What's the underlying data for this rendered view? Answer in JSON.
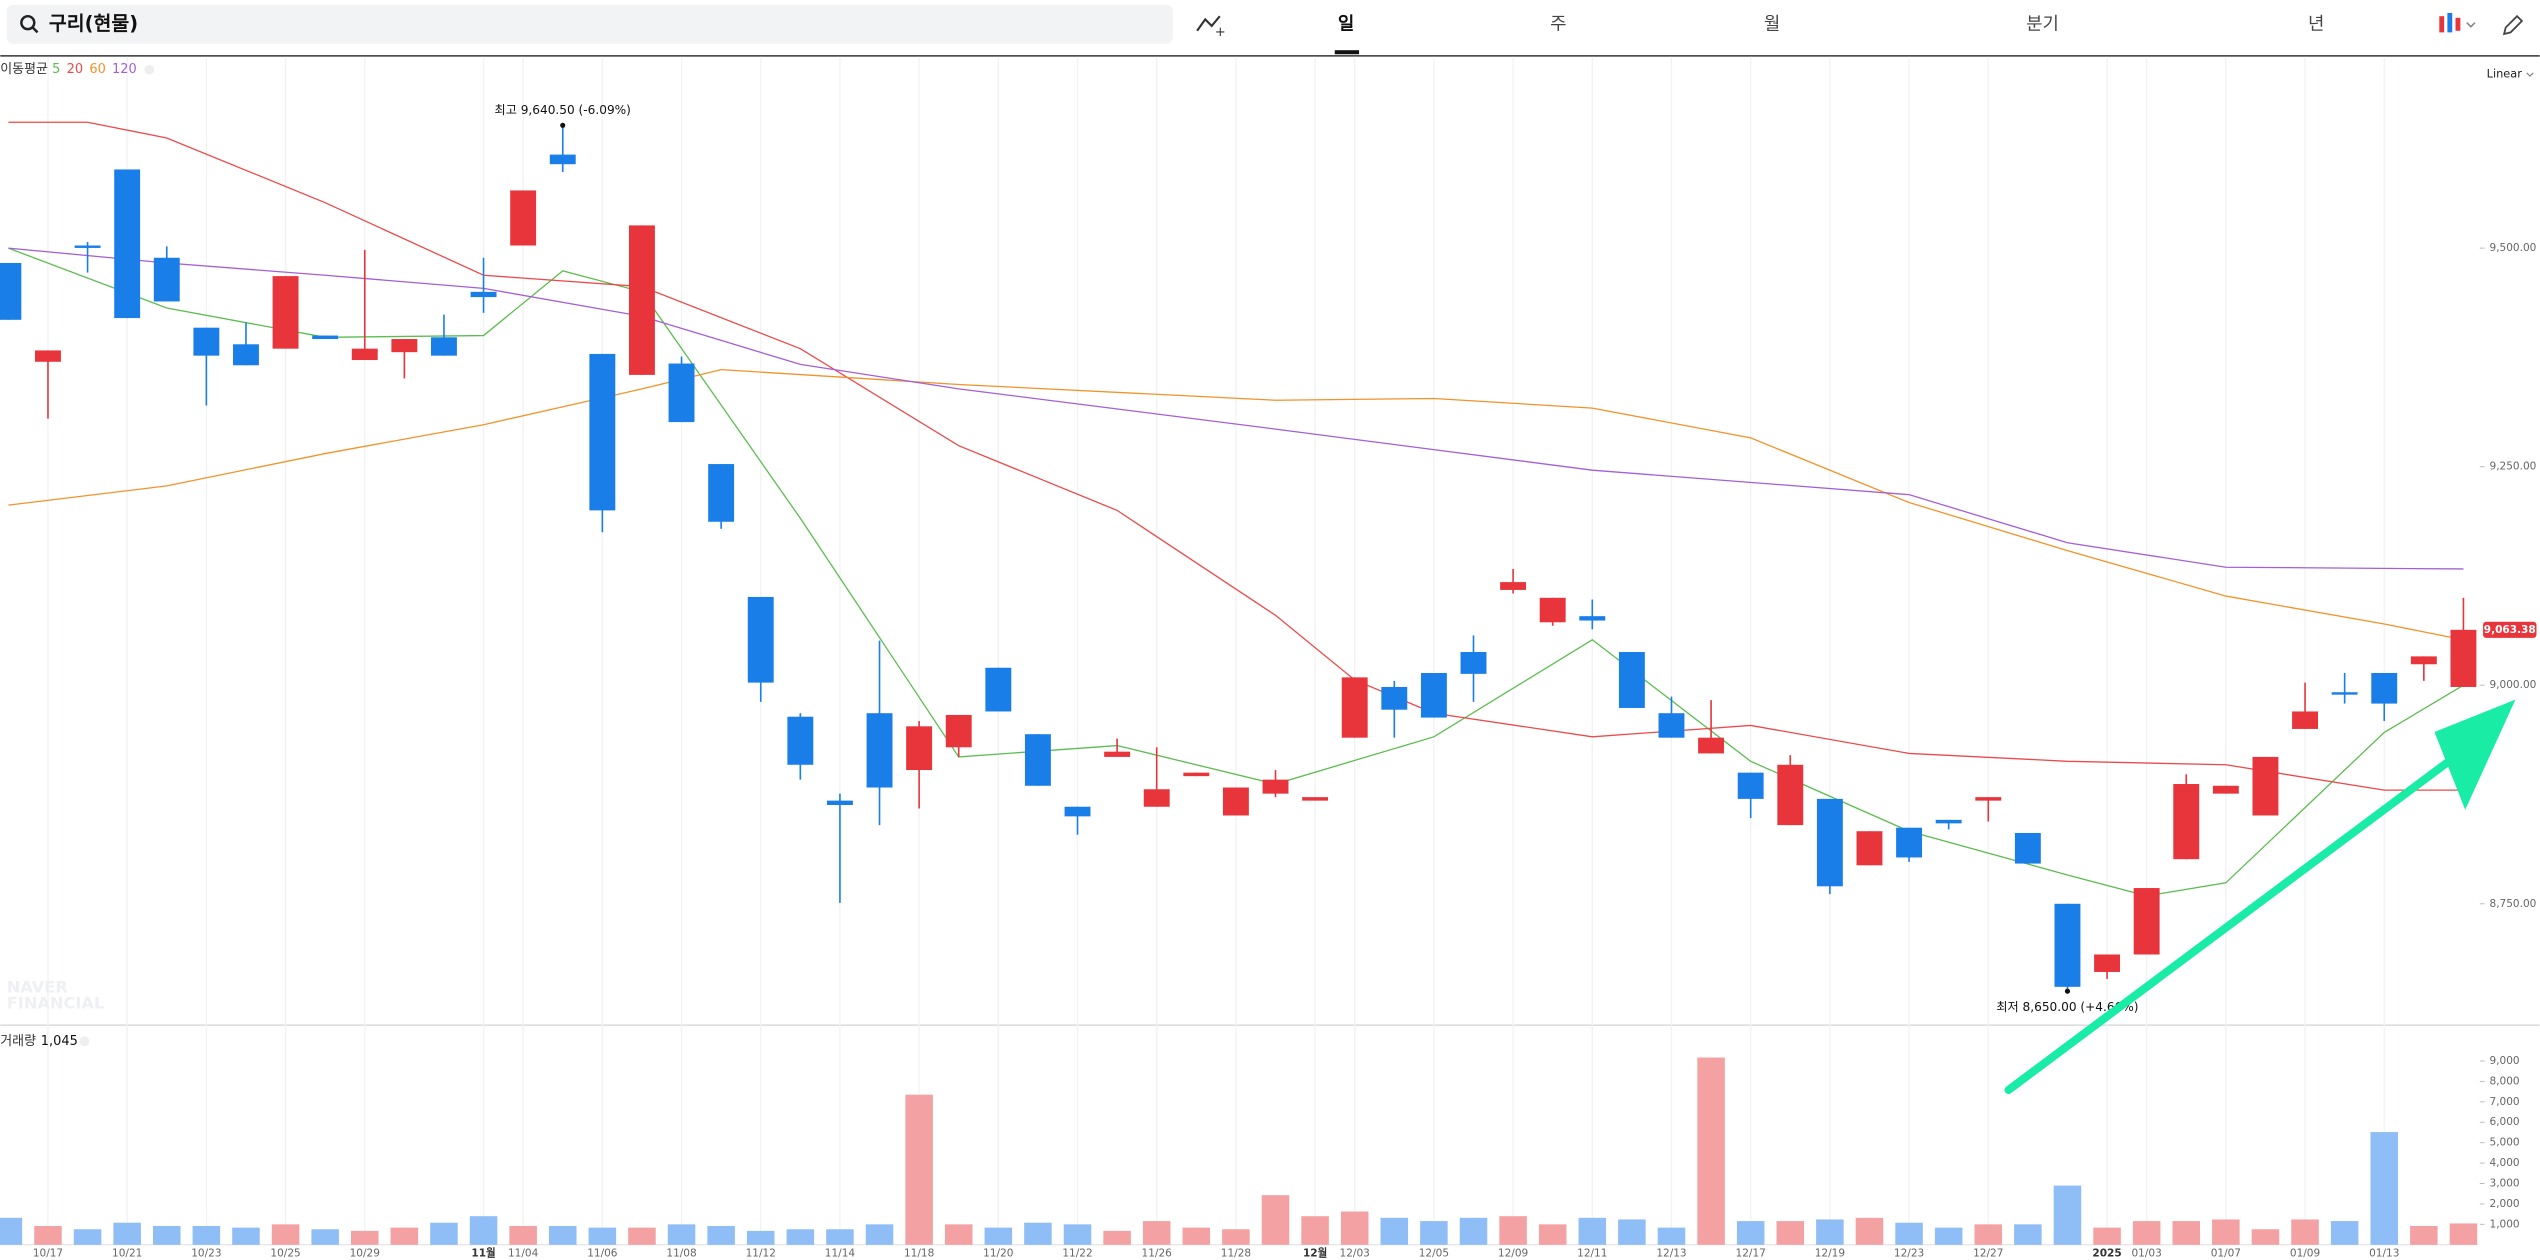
{
  "toolbar": {
    "search": "구리(현물)",
    "tabs": [
      "일",
      "주",
      "월",
      "분기",
      "년"
    ]
  },
  "chart_data": {
    "type": "candlestick",
    "categories": [
      null,
      "10/17",
      null,
      "10/21",
      null,
      "10/23",
      null,
      "10/25",
      null,
      "10/29",
      null,
      null,
      "11월",
      "11/04",
      null,
      "11/06",
      null,
      "11/08",
      null,
      "11/12",
      null,
      "11/14",
      null,
      "11/18",
      null,
      "11/20",
      null,
      "11/22",
      null,
      "11/26",
      null,
      "11/28",
      null,
      "12월",
      "12/03",
      null,
      "12/05",
      null,
      "12/09",
      null,
      "12/11",
      null,
      "12/13",
      null,
      "12/17",
      null,
      "12/19",
      null,
      "12/23",
      null,
      "12/27",
      null,
      null,
      "2025",
      "01/03",
      null,
      "01/07",
      null,
      "01/09",
      null,
      "01/13",
      null,
      null
    ],
    "open": [
      9483,
      9370,
      9503,
      9590,
      9489,
      9409,
      9390,
      9385,
      9400,
      9372,
      9381,
      9398,
      9450,
      9503,
      9607,
      9379,
      9355,
      9368,
      9253,
      9101,
      8964,
      8868,
      8968,
      8903,
      8929,
      9020,
      8944,
      8861,
      8918,
      8861,
      8896,
      8851,
      8876,
      8868,
      8940,
      8998,
      9014,
      9038,
      9109,
      9072,
      9079,
      9038,
      8968,
      8922,
      8900,
      8840,
      8870,
      8794,
      8837,
      8846,
      8868,
      8831,
      8750,
      8672,
      8692,
      8801,
      8876,
      8851,
      8950,
      8992,
      9014,
      9024,
      8998
    ],
    "high": [
      9483,
      9383,
      9507,
      9590,
      9502,
      9409,
      9415,
      9468,
      9400,
      9498,
      9396,
      9424,
      9489,
      9566,
      9640.5,
      9379,
      9526,
      9376,
      9253,
      9101,
      8968,
      8876,
      9051,
      8959,
      8966,
      9020,
      8944,
      8861,
      8939,
      8929,
      8900,
      8883,
      8903,
      8872,
      9009,
      9005,
      9014,
      9057,
      9133,
      9100,
      9098,
      9038,
      8987,
      8983,
      8900,
      8920,
      8870,
      8833,
      8837,
      8846,
      8872,
      8831,
      8750,
      8692,
      8768,
      8898,
      8885,
      8918,
      9003,
      9014,
      9014,
      9033,
      9100
    ],
    "low": [
      9418,
      9305,
      9472,
      9420,
      9439,
      9320,
      9366,
      9385,
      9396,
      9372,
      9351,
      9377,
      9426,
      9503,
      9587,
      9175,
      9355,
      9301,
      9179,
      8981,
      8892,
      8751,
      8840,
      8859,
      8918,
      8970,
      8885,
      8829,
      8918,
      8861,
      8896,
      8851,
      8872,
      8868,
      8940,
      8940,
      8963,
      8981,
      9105,
      9068,
      9064,
      8974,
      8940,
      8922,
      8848,
      8840,
      8761,
      8794,
      8798,
      8835,
      8844,
      8796,
      8650,
      8664,
      8692,
      8801,
      8876,
      8851,
      8950,
      8979,
      8959,
      9005,
      8998
    ],
    "close": [
      9418,
      9383,
      9502,
      9420,
      9439,
      9377,
      9366,
      9468,
      9396,
      9385,
      9396,
      9377,
      9444,
      9566,
      9596,
      9200,
      9526,
      9301,
      9187,
      9003,
      8909,
      8863,
      8883,
      8953,
      8966,
      8970,
      8885,
      8850,
      8924,
      8881,
      8900,
      8883,
      8892,
      8872,
      9009,
      8972,
      8963,
      9013,
      9118,
      9100,
      9074,
      8974,
      8940,
      8940,
      8870,
      8909,
      8770,
      8833,
      8803,
      8842,
      8872,
      8796,
      8655,
      8692,
      8768,
      8887,
      8885,
      8918,
      8970,
      8990,
      8979,
      9033,
      9063.38
    ],
    "up_color": "#e8353c",
    "down_color": "#1a7ee9",
    "ylim": [
      8613,
      9719
    ],
    "yticks": [
      {
        "value": 8750,
        "label": "8,750.00"
      },
      {
        "value": 9000,
        "label": "9,000.00"
      },
      {
        "value": 9250,
        "label": "9,250.00"
      },
      {
        "value": 9500,
        "label": "9,500.00"
      }
    ],
    "scale_label": "Linear",
    "last_label": "9,063.38",
    "high_label": "최고 9,640.50 (-6.09%)",
    "low_label": "최저 8,650.00 (+4.66%)",
    "ma_title": "이동평균",
    "moving_averages": [
      {
        "name": "5",
        "color": "#5bbd4f",
        "x": [
          0,
          4,
          8,
          12,
          14,
          16,
          20,
          24,
          28,
          32,
          36,
          40,
          44,
          48,
          52,
          54,
          56,
          60,
          62
        ],
        "values": [
          9500,
          9431.5,
          9398,
          9400,
          9474,
          9450,
          9191,
          8918,
          8931,
          8887,
          8941,
          9052,
          8913,
          8833,
          8783,
          8759,
          8774,
          8946,
          9000
        ]
      },
      {
        "name": "20",
        "color": "#ec4a4a",
        "x": [
          0,
          2,
          4,
          8,
          12,
          16,
          20,
          24,
          28,
          32,
          34,
          36,
          40,
          44,
          48,
          52,
          56,
          60,
          62
        ],
        "values": [
          9644,
          9644,
          9626,
          9552,
          9469,
          9456,
          9385,
          9274,
          9200,
          9080,
          9006,
          8968,
          8941,
          8954,
          8922,
          8913,
          8909,
          8880,
          8880
        ]
      },
      {
        "name": "60",
        "color": "#f3922b",
        "x": [
          0,
          4,
          8,
          12,
          16,
          18,
          24,
          32,
          36,
          40,
          44,
          48,
          52,
          56,
          60,
          62
        ],
        "values": [
          9206,
          9228,
          9265,
          9298,
          9339,
          9361,
          9344,
          9326,
          9328,
          9317,
          9283,
          9209,
          9154,
          9102,
          9070,
          9052
        ]
      },
      {
        "name": "120",
        "color": "#a45fd6",
        "x": [
          0,
          4,
          8,
          12,
          16,
          20,
          24,
          32,
          40,
          48,
          52,
          56,
          62
        ],
        "values": [
          9500,
          9483,
          9469,
          9454,
          9422,
          9367,
          9339,
          9293,
          9246,
          9218,
          9163,
          9135,
          9133
        ]
      }
    ],
    "watermark": [
      "NAVER",
      "FINANCIAL"
    ],
    "volume": {
      "title": "거래량",
      "last_label": "1,045",
      "values": [
        1320,
        920,
        760,
        1080,
        920,
        920,
        840,
        1000,
        760,
        680,
        840,
        1080,
        1400,
        920,
        920,
        840,
        840,
        1000,
        920,
        680,
        760,
        760,
        1000,
        7350,
        1000,
        840,
        1080,
        1000,
        680,
        1160,
        840,
        760,
        2430,
        1400,
        1630,
        1320,
        1160,
        1320,
        1400,
        1000,
        1320,
        1240,
        840,
        9170,
        1160,
        1160,
        1240,
        1320,
        1080,
        840,
        1000,
        1000,
        2900,
        840,
        1160,
        1160,
        1240,
        760,
        1240,
        1160,
        5520,
        920,
        1045
      ],
      "up_color": "#f4a1a3",
      "down_color": "#8fbdf5",
      "ylim": [
        0,
        10200
      ],
      "yticks": [
        {
          "value": 1000,
          "label": "1,000"
        },
        {
          "value": 2000,
          "label": "2,000"
        },
        {
          "value": 3000,
          "label": "3,000"
        },
        {
          "value": 4000,
          "label": "4,000"
        },
        {
          "value": 5000,
          "label": "5,000"
        },
        {
          "value": 6000,
          "label": "6,000"
        },
        {
          "value": 7000,
          "label": "7,000"
        },
        {
          "value": 8000,
          "label": "8,000"
        },
        {
          "value": 9000,
          "label": "9,000"
        }
      ]
    }
  }
}
